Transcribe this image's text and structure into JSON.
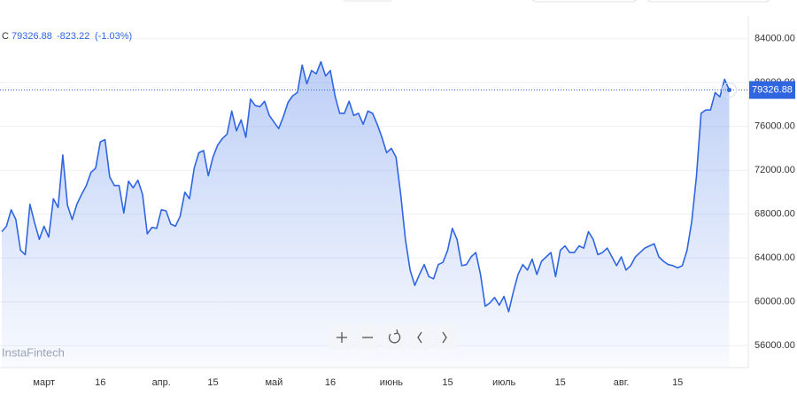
{
  "chart_data": {
    "type": "area",
    "symbol": "С",
    "change": -823.22,
    "change_percent": {
      "value": -1.03,
      "label": "(-1.03%)"
    },
    "watermark": "InstaFintech",
    "categories": [
      null,
      null,
      null,
      null,
      null,
      null,
      null,
      null,
      null,
      "март",
      null,
      null,
      null,
      null,
      null,
      null,
      null,
      null,
      null,
      null,
      null,
      "16",
      null,
      null,
      null,
      null,
      null,
      null,
      null,
      null,
      null,
      null,
      null,
      null,
      "апр.",
      null,
      null,
      null,
      null,
      null,
      null,
      null,
      null,
      null,
      null,
      "15",
      null,
      null,
      null,
      null,
      null,
      null,
      null,
      null,
      null,
      null,
      null,
      null,
      "май",
      null,
      null,
      null,
      null,
      null,
      null,
      null,
      null,
      null,
      null,
      null,
      "16",
      null,
      null,
      null,
      null,
      null,
      null,
      null,
      null,
      null,
      null,
      null,
      null,
      "июнь",
      null,
      null,
      null,
      null,
      null,
      null,
      null,
      null,
      null,
      null,
      null,
      "15",
      null,
      null,
      null,
      null,
      null,
      null,
      null,
      null,
      null,
      null,
      null,
      "июль",
      null,
      null,
      null,
      null,
      null,
      null,
      null,
      null,
      null,
      null,
      null,
      "15",
      null,
      null,
      null,
      null,
      null,
      null,
      null,
      null,
      null,
      null,
      null,
      null,
      "авг.",
      null,
      null,
      null,
      null,
      null,
      null,
      null,
      null,
      null,
      null,
      null,
      "15",
      null,
      null,
      null,
      null,
      null,
      null,
      null,
      null,
      null,
      null,
      null
    ],
    "series": [
      {
        "color": "#2f66e0",
        "values": [
          66400,
          66900,
          68400,
          67500,
          64700,
          64300,
          68900,
          67200,
          65700,
          66900,
          65900,
          69400,
          68600,
          73400,
          68800,
          67500,
          68900,
          69800,
          70600,
          71800,
          72200,
          74600,
          74800,
          71400,
          70600,
          70600,
          68100,
          71000,
          70400,
          71100,
          69800,
          66200,
          66800,
          66700,
          68400,
          68300,
          67100,
          66900,
          67800,
          70000,
          69400,
          72200,
          73600,
          73800,
          71500,
          73200,
          74300,
          74900,
          75300,
          77400,
          75600,
          76600,
          75000,
          78500,
          77900,
          77800,
          78300,
          77000,
          76400,
          75800,
          76900,
          78200,
          78800,
          79100,
          81600,
          79900,
          81100,
          80800,
          81900,
          80600,
          81100,
          78800,
          77200,
          77200,
          78300,
          77000,
          77200,
          76200,
          77400,
          77200,
          76200,
          75000,
          73600,
          74000,
          73200,
          69800,
          65700,
          62900,
          61500,
          62500,
          63400,
          62300,
          62100,
          63400,
          63600,
          64700,
          66700,
          65700,
          63300,
          63400,
          64100,
          64500,
          62500,
          59600,
          59900,
          60400,
          59700,
          60500,
          59100,
          60900,
          62500,
          63400,
          62900,
          63900,
          62500,
          63700,
          64100,
          64500,
          62300,
          64700,
          65100,
          64500,
          64500,
          65100,
          64900,
          66400,
          65700,
          64300,
          64500,
          64900,
          64100,
          63300,
          64100,
          62900,
          63300,
          64100,
          64500,
          64900,
          65100,
          65300,
          64100,
          63700,
          63400,
          63300,
          63100,
          63300,
          64700,
          67300,
          71400,
          77200,
          77500,
          77500,
          79100,
          78700,
          80300,
          79326.88
        ]
      }
    ],
    "ylim": [
      54000,
      86000
    ],
    "yticks": [
      {
        "value": 56000,
        "label": "56000.00"
      },
      {
        "value": 60000,
        "label": "60000.00"
      },
      {
        "value": 64000,
        "label": "64000.00"
      },
      {
        "value": 68000,
        "label": "68000.00"
      },
      {
        "value": 72000,
        "label": "72000.00"
      },
      {
        "value": 76000,
        "label": "76000.00"
      },
      {
        "value": 80000,
        "label": "80000.00"
      },
      {
        "value": 84000,
        "label": "84000.00"
      }
    ],
    "grid": true
  }
}
